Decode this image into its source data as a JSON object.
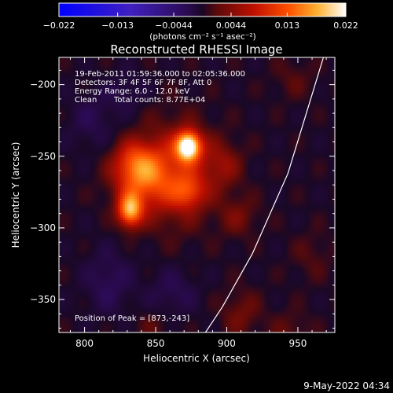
{
  "chart_data": {
    "type": "heatmap",
    "title": "Reconstructed RHESSI Image",
    "xlabel": "Heliocentric X (arcsec)",
    "ylabel": "Heliocentric Y (arcsec)",
    "xlim": [
      782,
      976
    ],
    "ylim": [
      -373,
      -181
    ],
    "x_ticks": [
      800,
      850,
      900,
      950
    ],
    "y_ticks": [
      -200,
      -250,
      -300,
      -350
    ],
    "x_tick_labels": [
      "800",
      "850",
      "900",
      "950"
    ],
    "y_tick_labels": [
      "−200",
      "−250",
      "−300",
      "−350"
    ],
    "colorbar": {
      "min": -0.022,
      "max": 0.022,
      "ticks": [
        -0.022,
        -0.013,
        -0.0044,
        0.0044,
        0.013,
        0.022
      ],
      "tick_labels": [
        "−0.022",
        "−0.013",
        "−0.0044",
        "0.0044",
        "0.013",
        "0.022"
      ],
      "units": "(photons cm⁻² s⁻¹ asec⁻²)"
    },
    "annotations": {
      "time": "19-Feb-2011 01:59:36.000 to 02:05:36.000",
      "detectors": "Detectors: 3F 4F 5F 6F 7F 8F, Att 0",
      "energy": "Energy Range: 6.0 - 12.0 keV",
      "algorithm": "Clean",
      "counts": "Total counts: 8.77E+04",
      "peak": "Position of Peak = [873,-243]"
    },
    "peak": [
      873,
      -243
    ],
    "sources": [
      {
        "x": 873,
        "y": -243,
        "amp": 0.022,
        "sx": 6,
        "sy": 7
      },
      {
        "x": 832,
        "y": -288,
        "amp": 0.016,
        "sx": 6,
        "sy": 8
      },
      {
        "x": 840,
        "y": -265,
        "amp": 0.01,
        "sx": 14,
        "sy": 14
      },
      {
        "x": 863,
        "y": -262,
        "amp": 0.008,
        "sx": 18,
        "sy": 24
      },
      {
        "x": 873,
        "y": -275,
        "amp": 0.007,
        "sx": 8,
        "sy": 8
      },
      {
        "x": 835,
        "y": -253,
        "amp": 0.006,
        "sx": 10,
        "sy": 10
      },
      {
        "x": 897,
        "y": -256,
        "amp": 0.0045,
        "sx": 10,
        "sy": 12
      },
      {
        "x": 908,
        "y": -292,
        "amp": 0.0035,
        "sx": 10,
        "sy": 10
      },
      {
        "x": 910,
        "y": -360,
        "amp": 0.0035,
        "sx": 10,
        "sy": 12
      },
      {
        "x": 945,
        "y": -372,
        "amp": 0.0025,
        "sx": 10,
        "sy": 10
      },
      {
        "x": 848,
        "y": -368,
        "amp": 0.002,
        "sx": 10,
        "sy": 8
      },
      {
        "x": 947,
        "y": -196,
        "amp": 0.0022,
        "sx": 10,
        "sy": 10
      },
      {
        "x": 960,
        "y": -320,
        "amp": 0.002,
        "sx": 10,
        "sy": 12
      },
      {
        "x": 817,
        "y": -338,
        "amp": -0.0035,
        "sx": 12,
        "sy": 16
      },
      {
        "x": 862,
        "y": -345,
        "amp": -0.003,
        "sx": 12,
        "sy": 12
      },
      {
        "x": 805,
        "y": -225,
        "amp": -0.0028,
        "sx": 12,
        "sy": 14
      },
      {
        "x": 830,
        "y": -205,
        "amp": -0.0025,
        "sx": 10,
        "sy": 10
      }
    ],
    "limb": [
      [
        968,
        -181
      ],
      [
        943,
        -262
      ],
      [
        918,
        -318
      ],
      [
        897,
        -355
      ],
      [
        885,
        -373
      ]
    ],
    "date_stamp": "9-May-2022 04:34"
  }
}
